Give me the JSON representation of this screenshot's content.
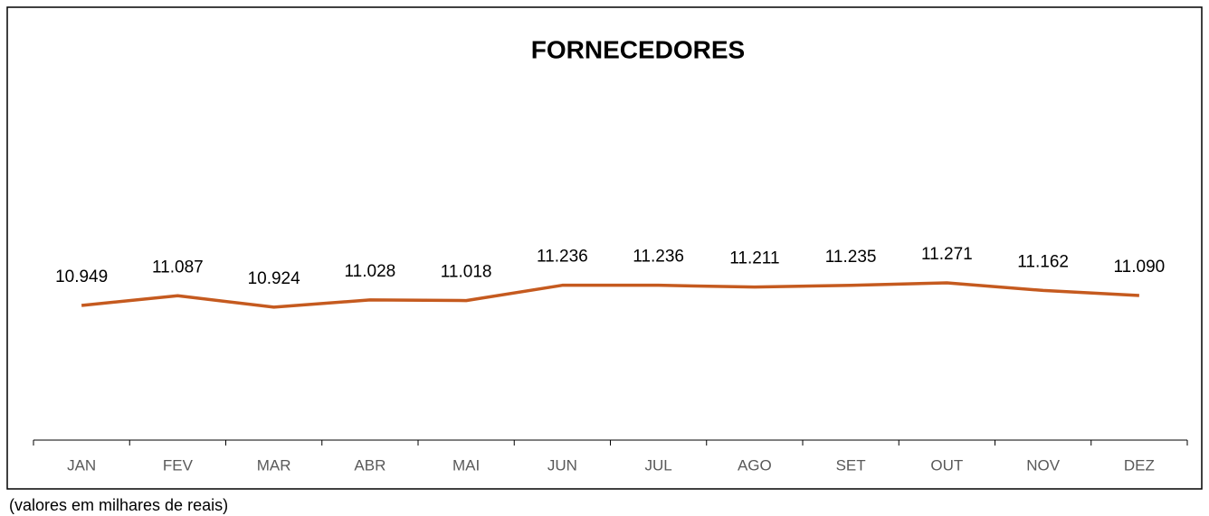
{
  "chart_data": {
    "type": "line",
    "title": "FORNECEDORES",
    "categories": [
      "JAN",
      "FEV",
      "MAR",
      "ABR",
      "MAI",
      "JUN",
      "JUL",
      "AGO",
      "SET",
      "OUT",
      "NOV",
      "DEZ"
    ],
    "series": [
      {
        "color": "#c55a1f",
        "values": [
          10949,
          11087,
          10924,
          11028,
          11018,
          11236,
          11236,
          11211,
          11235,
          11271,
          11162,
          11090
        ],
        "value_labels": [
          "10.949",
          "11.087",
          "10.924",
          "11.028",
          "11.018",
          "11.236",
          "11.236",
          "11.211",
          "11.235",
          "11.271",
          "11.162",
          "11.090"
        ]
      }
    ],
    "note": "(valores em milhares de reais)"
  }
}
